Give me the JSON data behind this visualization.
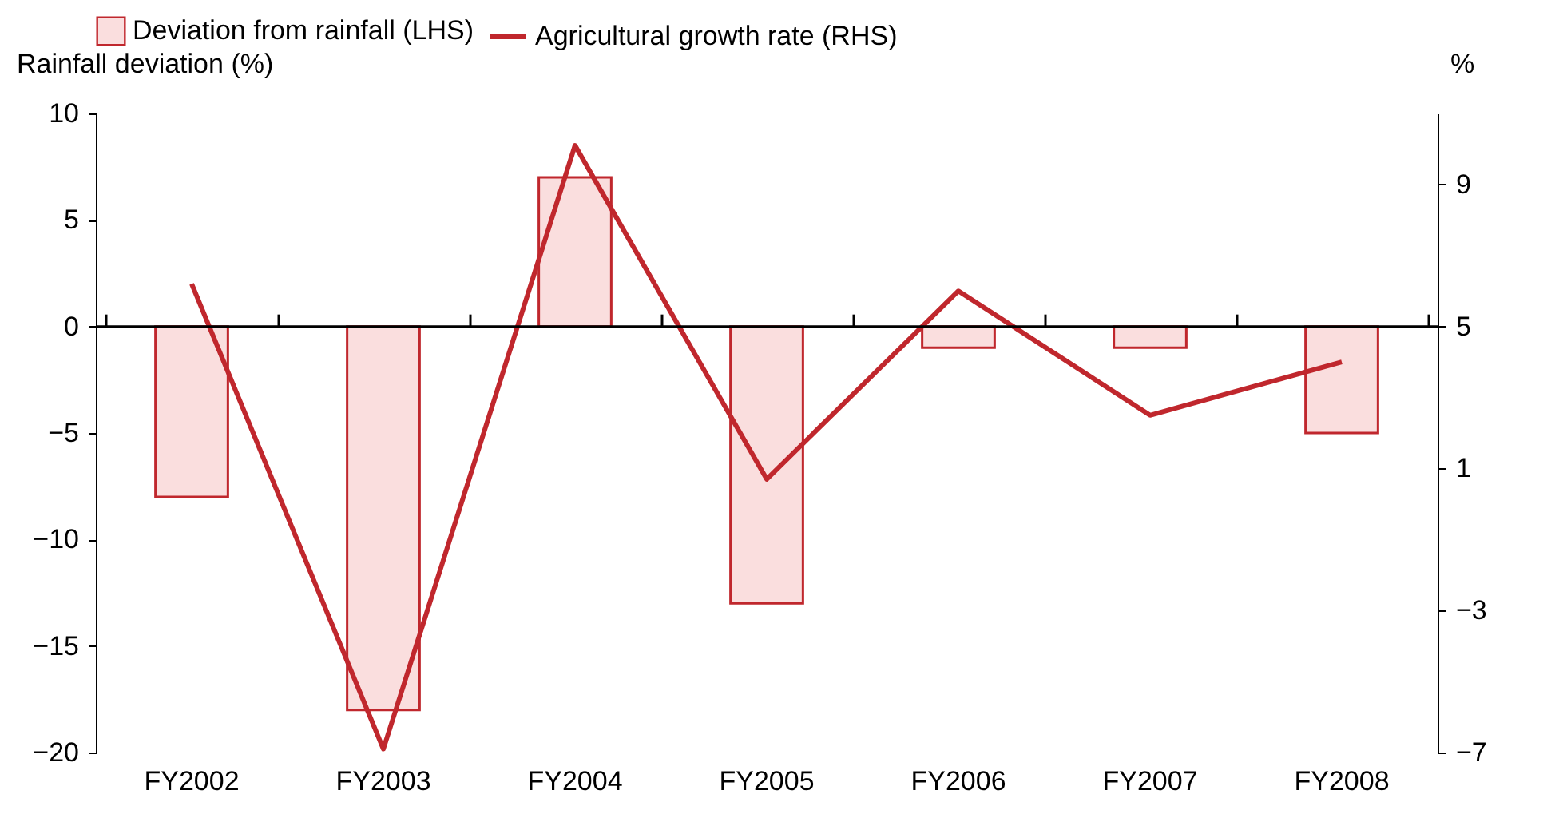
{
  "chart_data": {
    "type": "bar",
    "ylabel": "Rainfall deviation (%)",
    "y2label": "%",
    "categories": [
      "FY2002",
      "FY2003",
      "FY2004",
      "FY2005",
      "FY2006",
      "FY2007",
      "FY2008"
    ],
    "series": [
      {
        "name": "Deviation from rainfall (LHS)",
        "color": "#fadede",
        "values": [
          -8,
          -18,
          7,
          -13,
          -1,
          -1,
          -5
        ]
      },
      {
        "name": "Agricultural growth rate (RHS)",
        "type": "line",
        "axis": "y2",
        "color": "#c0272d",
        "values": [
          6.2,
          -6.9,
          10.1,
          0.7,
          6.0,
          2.5,
          4.0
        ]
      }
    ],
    "ylim": [
      -20,
      10
    ],
    "yticks": [
      -20,
      -15,
      -10,
      -5,
      0,
      5,
      10
    ],
    "y2lim": [
      -7,
      11
    ],
    "y2ticks": [
      -7,
      -3,
      1,
      5,
      9
    ],
    "ref_lines": [
      {
        "axis": "y",
        "value": 0,
        "color": "#000000"
      }
    ],
    "legend": "top",
    "grid": false
  }
}
